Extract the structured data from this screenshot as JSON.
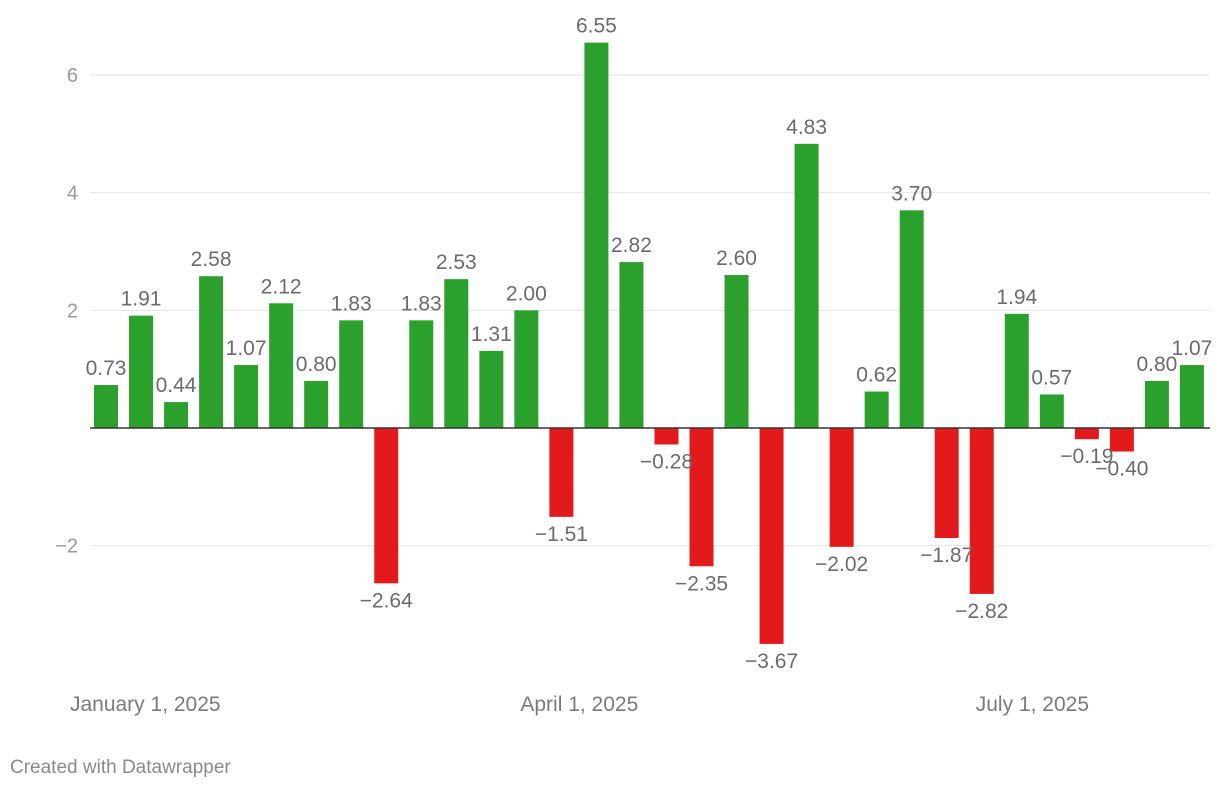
{
  "chart_data": {
    "type": "bar",
    "title": "",
    "xlabel": "",
    "ylabel": "",
    "categories": [
      "2025-01-05",
      "2025-01-12",
      "2025-01-19",
      "2025-01-26",
      "2025-02-02",
      "2025-02-09",
      "2025-02-16",
      "2025-02-23",
      "2025-03-02",
      "2025-03-09",
      "2025-03-16",
      "2025-03-23",
      "2025-03-30",
      "2025-04-06",
      "2025-04-13",
      "2025-04-20",
      "2025-04-27",
      "2025-05-04",
      "2025-05-11",
      "2025-05-18",
      "2025-05-25",
      "2025-06-01",
      "2025-06-08",
      "2025-06-15",
      "2025-06-22",
      "2025-06-29",
      "2025-07-06",
      "2025-07-13",
      "2025-07-20",
      "2025-07-27",
      "2025-08-03",
      "2025-08-10"
    ],
    "values": [
      0.73,
      1.91,
      0.44,
      2.58,
      1.07,
      2.12,
      0.8,
      1.83,
      -2.64,
      1.83,
      2.53,
      1.31,
      2.0,
      -1.51,
      6.55,
      2.82,
      -0.28,
      -2.35,
      2.6,
      -3.67,
      4.83,
      -2.02,
      0.62,
      3.7,
      -1.87,
      -2.82,
      1.94,
      0.57,
      -0.19,
      -0.4,
      0.8,
      1.07
    ],
    "labels": [
      "0.73",
      "1.91",
      "0.44",
      "2.58",
      "1.07",
      "2.12",
      "0.80",
      "1.83",
      "−2.64",
      "1.83",
      "2.53",
      "1.31",
      "2.00",
      "−1.51",
      "6.55",
      "2.82",
      "−0.28",
      "−2.35",
      "2.60",
      "−3.67",
      "4.83",
      "−2.02",
      "0.62",
      "3.70",
      "−1.87",
      "−2.82",
      "1.94",
      "0.57",
      "−0.19",
      "−0.40",
      "0.80",
      "1.07"
    ],
    "ylim": [
      -3.9,
      6.9
    ],
    "yticks": [
      {
        "value": 6,
        "label": "6"
      },
      {
        "value": 4,
        "label": "4"
      },
      {
        "value": 2,
        "label": "2"
      },
      {
        "value": -2,
        "label": "−2"
      }
    ],
    "xticks": [
      {
        "date": "2025-01-01",
        "label": "January 1, 2025"
      },
      {
        "date": "2025-04-01",
        "label": "April 1, 2025"
      },
      {
        "date": "2025-07-01",
        "label": "July 1, 2025"
      }
    ],
    "grid": true,
    "colors": {
      "positive": "#2ca02c",
      "negative": "#e31a1c",
      "grid": "#e2e2e2",
      "zero_line": "#333333"
    }
  },
  "footer": {
    "credit": "Created with Datawrapper"
  }
}
